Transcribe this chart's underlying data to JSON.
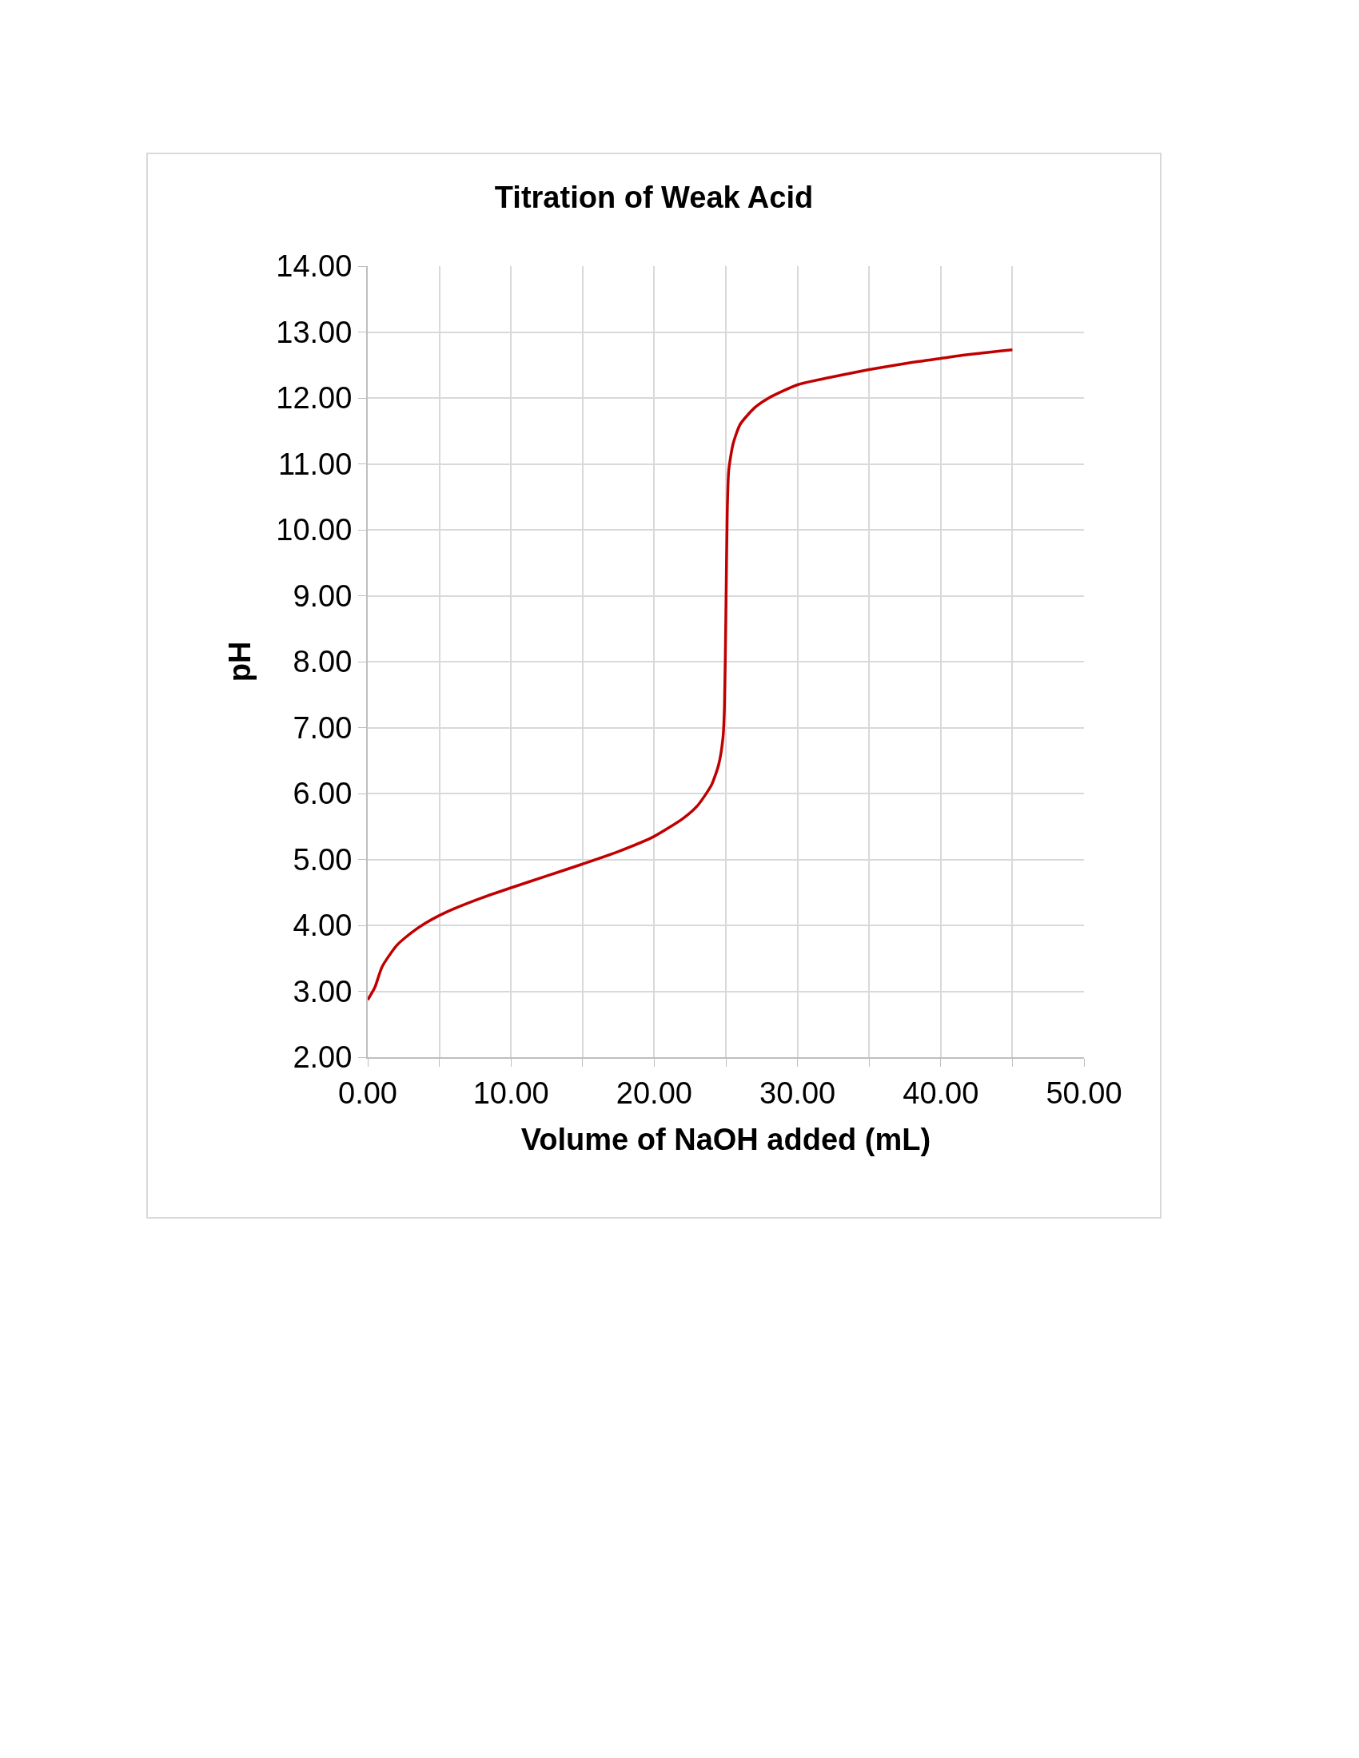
{
  "chart_data": {
    "type": "line",
    "title": "Titration of Weak Acid",
    "xlabel": "Volume of NaOH added (mL)",
    "ylabel": "pH",
    "x": [
      0,
      0.5,
      1,
      2,
      3,
      4,
      5,
      6,
      8,
      10,
      12.5,
      15,
      17.5,
      20,
      22,
      23,
      24,
      24.5,
      24.8,
      24.9,
      25,
      25.1,
      25.2,
      25.5,
      26,
      27,
      28,
      30,
      32,
      35,
      38,
      40,
      42,
      45
    ],
    "series": [
      {
        "color": "#c00000",
        "values": [
          2.87,
          3.06,
          3.37,
          3.69,
          3.88,
          4.03,
          4.15,
          4.25,
          4.42,
          4.57,
          4.75,
          4.93,
          5.12,
          5.35,
          5.62,
          5.81,
          6.13,
          6.44,
          6.85,
          7.3,
          8.7,
          10.3,
          10.9,
          11.3,
          11.6,
          11.85,
          12.0,
          12.2,
          12.3,
          12.43,
          12.54,
          12.6,
          12.66,
          12.73
        ]
      }
    ],
    "xlim": [
      0,
      50
    ],
    "xticks": [
      {
        "value": 0,
        "label": "0.00"
      },
      {
        "value": 5,
        "label": null
      },
      {
        "value": 10,
        "label": "10.00"
      },
      {
        "value": 15,
        "label": null
      },
      {
        "value": 20,
        "label": "20.00"
      },
      {
        "value": 25,
        "label": null
      },
      {
        "value": 30,
        "label": "30.00"
      },
      {
        "value": 35,
        "label": null
      },
      {
        "value": 40,
        "label": "40.00"
      },
      {
        "value": 45,
        "label": null
      },
      {
        "value": 50,
        "label": "50.00"
      }
    ],
    "ylim": [
      2,
      14
    ],
    "yticks": [
      {
        "value": 2,
        "label": "2.00"
      },
      {
        "value": 3,
        "label": "3.00"
      },
      {
        "value": 4,
        "label": "4.00"
      },
      {
        "value": 5,
        "label": "5.00"
      },
      {
        "value": 6,
        "label": "6.00"
      },
      {
        "value": 7,
        "label": "7.00"
      },
      {
        "value": 8,
        "label": "8.00"
      },
      {
        "value": 9,
        "label": "9.00"
      },
      {
        "value": 10,
        "label": "10.00"
      },
      {
        "value": 11,
        "label": "11.00"
      },
      {
        "value": 12,
        "label": "12.00"
      },
      {
        "value": 13,
        "label": "13.00"
      },
      {
        "value": 14,
        "label": "14.00"
      }
    ],
    "grid": true,
    "marker": "none",
    "line_style": "solid"
  }
}
